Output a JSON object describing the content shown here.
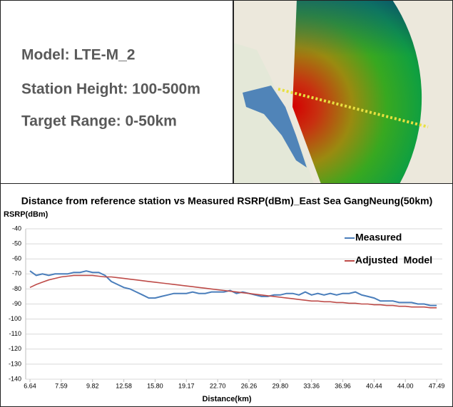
{
  "info_panel": {
    "lines": [
      "Model: LTE-M_2",
      "Station Height: 100-500m",
      "Target Range: 0-50km"
    ]
  },
  "chart_data": {
    "type": "line",
    "title": "Distance from reference station vs Measured RSRP(dBm)_East Sea GangNeung(50km)",
    "y_label": "RSRP(dBm)",
    "x_label": "Distance(km)",
    "categories": [
      "6.64",
      null,
      null,
      null,
      null,
      "7.59",
      null,
      null,
      null,
      null,
      "9.82",
      null,
      null,
      null,
      null,
      "12.58",
      null,
      null,
      null,
      null,
      "15.80",
      null,
      null,
      null,
      null,
      "19.17",
      null,
      null,
      null,
      null,
      "22.70",
      null,
      null,
      null,
      null,
      "26.26",
      null,
      null,
      null,
      null,
      "29.80",
      null,
      null,
      null,
      null,
      "33.36",
      null,
      null,
      null,
      null,
      "36.96",
      null,
      null,
      null,
      null,
      "40.44",
      null,
      null,
      null,
      null,
      "44.00",
      null,
      null,
      null,
      null,
      "47.49"
    ],
    "series": [
      {
        "name": "Measured",
        "color": "#4a7ebb",
        "values": [
          -68,
          -71,
          -70,
          -71,
          -70,
          -70,
          -70,
          -69,
          -69,
          -68,
          -69,
          -69,
          -71,
          -75,
          -77,
          -79,
          -80,
          -82,
          -84,
          -86,
          -86,
          -85,
          -84,
          -83,
          -83,
          -83,
          -82,
          -83,
          -83,
          -82,
          -82,
          -82,
          -81,
          -83,
          -82,
          -83,
          -84,
          -85,
          -85,
          -84,
          -84,
          -83,
          -83,
          -84,
          -82,
          -84,
          -83,
          -84,
          -83,
          -84,
          -83,
          -83,
          -82,
          -84,
          -85,
          -86,
          -88,
          -88,
          -88,
          -89,
          -89,
          -89,
          -90,
          -90,
          -91,
          -91
        ]
      },
      {
        "name": "Adjusted  Model",
        "color": "#be4b48",
        "values": [
          -79,
          -77,
          -75.5,
          -74,
          -73,
          -72,
          -71.5,
          -71,
          -71,
          -71,
          -71,
          -71.5,
          -72,
          -72,
          -72.5,
          -73,
          -73.5,
          -74,
          -74.5,
          -75,
          -75.5,
          -76,
          -76.5,
          -77,
          -77.5,
          -78,
          -78.5,
          -79,
          -79.5,
          -80,
          -80.5,
          -81,
          -81.5,
          -82,
          -82.5,
          -83,
          -83.5,
          -84,
          -84.5,
          -85,
          -85.5,
          -86,
          -86.5,
          -87,
          -87.5,
          -88,
          -88,
          -88.5,
          -88.5,
          -89,
          -89,
          -89.5,
          -89.5,
          -90,
          -90,
          -90.5,
          -90.5,
          -91,
          -91,
          -91.5,
          -91.5,
          -92,
          -92,
          -92,
          -92.5,
          -92.5
        ]
      }
    ],
    "ylim": [
      -140,
      -40
    ],
    "yticks": [
      -40,
      -50,
      -60,
      -70,
      -80,
      -90,
      -100,
      -110,
      -120,
      -130,
      -140
    ],
    "grid": true
  }
}
